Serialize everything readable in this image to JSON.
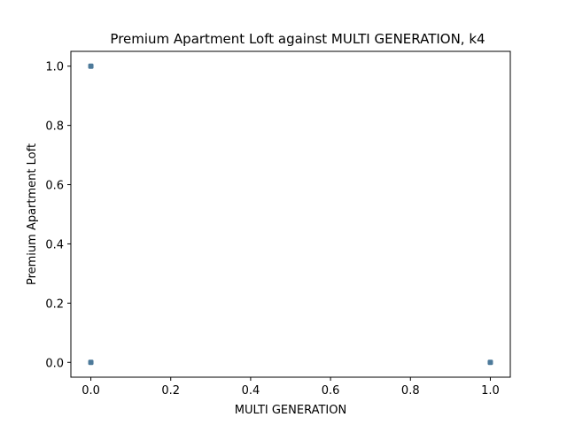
{
  "chart_data": {
    "type": "scatter",
    "title": "Premium Apartment Loft against MULTI GENERATION, k4",
    "xlabel": "MULTI GENERATION",
    "ylabel": "Premium Apartment Loft",
    "xlim": [
      -0.05,
      1.05
    ],
    "ylim": [
      -0.05,
      1.05
    ],
    "xticks": [
      0.0,
      0.2,
      0.4,
      0.6,
      0.8,
      1.0
    ],
    "yticks": [
      0.0,
      0.2,
      0.4,
      0.6,
      0.8,
      1.0
    ],
    "xtick_labels": [
      "0.0",
      "0.2",
      "0.4",
      "0.6",
      "0.8",
      "1.0"
    ],
    "ytick_labels": [
      "0.0",
      "0.2",
      "0.4",
      "0.6",
      "0.8",
      "1.0"
    ],
    "grid": false,
    "marker_color": "#3a6b8f",
    "series": [
      {
        "x": [
          0.0,
          0.0,
          1.0
        ],
        "y": [
          1.0,
          0.0,
          0.0
        ]
      }
    ]
  }
}
